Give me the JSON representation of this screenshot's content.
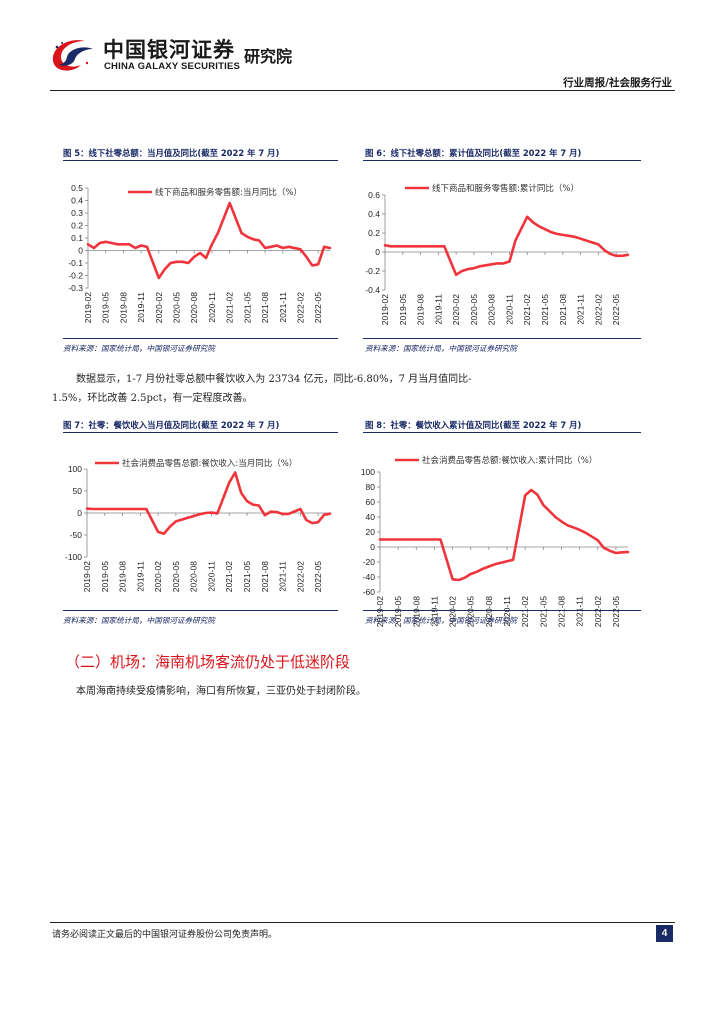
{
  "header": {
    "logo_cn": "中国银河证券",
    "logo_en": "CHINA GALAXY SECURITIES",
    "institute": "研究院",
    "category": "行业周报/社会服务行业"
  },
  "figures": [
    {
      "title": "图 5：线下社零总额：当月值及同比(截至 2022 年 7 月)",
      "source": "资料来源：国家统计局，中国银河证券研究院"
    },
    {
      "title": "图 6：线下社零总额：累计值及同比(截至 2022 年 7 月)",
      "source": "资料来源：国家统计局，中国银河证券研究院"
    },
    {
      "title": "图 7：社零：餐饮收入当月值及同比(截至 2022 年 7 月)",
      "source": "资料来源：国家统计局，中国银河证券研究院"
    },
    {
      "title": "图 8：社零：餐饮收入累计值及同比(截至 2022 年 7 月)",
      "source": "资料来源：国家统计局，中国银河证券研究院"
    }
  ],
  "body": {
    "para1_line1": "数据显示，1-7 月份社零总额中餐饮收入为 23734 亿元，同比-6.80%，7 月当月值同比-",
    "para1_line2": "1.5%，环比改善 2.5pct，有一定程度改善。",
    "section_title": "（二）机场：海南机场客流仍处于低迷阶段",
    "para2": "本周海南持续受疫情影响，海口有所恢复，三亚仍处于封闭阶段。"
  },
  "footer": {
    "disclaimer": "请务必阅读正文最后的中国银河证券股份公司免责声明。",
    "page": "4"
  },
  "colors": {
    "line": "#f0343c",
    "navy": "#1a2a66",
    "section_red": "#d9141b"
  },
  "chart_data": [
    {
      "type": "line",
      "legend": "线下商品和服务零售额:当月同比（%）",
      "yticks": [
        0.5,
        0.4,
        0.3,
        0.2,
        0.1,
        0,
        -0.1,
        -0.2,
        -0.3
      ],
      "ylim": [
        -0.3,
        0.5
      ],
      "xticks": [
        "2019-02",
        "2019-05",
        "2019-08",
        "2019-11",
        "2020-02",
        "2020-05",
        "2020-08",
        "2020-11",
        "2021-02",
        "2021-05",
        "2021-08",
        "2021-11",
        "2022-02",
        "2022-05"
      ],
      "x": [
        "2019-02",
        "2019-03",
        "2019-04",
        "2019-05",
        "2019-06",
        "2019-07",
        "2019-08",
        "2019-09",
        "2019-10",
        "2019-11",
        "2019-12",
        "2020-02",
        "2020-03",
        "2020-04",
        "2020-05",
        "2020-06",
        "2020-07",
        "2020-08",
        "2020-09",
        "2020-10",
        "2020-11",
        "2020-12",
        "2021-02",
        "2021-03",
        "2021-04",
        "2021-05",
        "2021-06",
        "2021-07",
        "2021-08",
        "2021-09",
        "2021-10",
        "2021-11",
        "2021-12",
        "2022-02",
        "2022-03",
        "2022-04",
        "2022-05",
        "2022-06",
        "2022-07"
      ],
      "values": [
        0.05,
        0.02,
        0.06,
        0.07,
        0.06,
        0.05,
        0.05,
        0.05,
        0.02,
        0.04,
        0.03,
        -0.22,
        -0.15,
        -0.1,
        -0.09,
        -0.09,
        -0.1,
        -0.05,
        -0.02,
        -0.06,
        0.05,
        0.14,
        0.38,
        0.26,
        0.14,
        0.11,
        0.09,
        0.08,
        0.02,
        0.03,
        0.04,
        0.02,
        0.03,
        0.01,
        -0.05,
        -0.12,
        -0.11,
        0.03,
        0.02
      ]
    },
    {
      "type": "line",
      "legend": "线下商品和服务零售额:累计同比（%）",
      "yticks": [
        0.6,
        0.4,
        0.2,
        0,
        -0.2,
        -0.4
      ],
      "ylim": [
        -0.4,
        0.6
      ],
      "xticks": [
        "2019-02",
        "2019-05",
        "2019-08",
        "2019-11",
        "2020-02",
        "2020-05",
        "2020-08",
        "2020-11",
        "2021-02",
        "2021-05",
        "2021-08",
        "2021-11",
        "2022-02",
        "2022-05"
      ],
      "x": [
        "2019-02",
        "2019-03",
        "2019-04",
        "2019-05",
        "2019-06",
        "2019-07",
        "2019-08",
        "2019-09",
        "2019-10",
        "2019-11",
        "2019-12",
        "2020-02",
        "2020-03",
        "2020-04",
        "2020-05",
        "2020-06",
        "2020-07",
        "2020-08",
        "2020-09",
        "2020-10",
        "2020-11",
        "2020-12",
        "2021-02",
        "2021-03",
        "2021-04",
        "2021-05",
        "2021-06",
        "2021-07",
        "2021-08",
        "2021-09",
        "2021-10",
        "2021-11",
        "2021-12",
        "2022-02",
        "2022-03",
        "2022-04",
        "2022-05",
        "2022-06",
        "2022-07"
      ],
      "values": [
        0.07,
        0.06,
        0.06,
        0.06,
        0.06,
        0.06,
        0.06,
        0.06,
        0.06,
        0.06,
        0.06,
        -0.24,
        -0.2,
        -0.18,
        -0.17,
        -0.15,
        -0.14,
        -0.13,
        -0.12,
        -0.12,
        -0.1,
        0.12,
        0.37,
        0.31,
        0.27,
        0.24,
        0.21,
        0.19,
        0.18,
        0.17,
        0.16,
        0.14,
        0.12,
        0.08,
        0.02,
        -0.02,
        -0.04,
        -0.04,
        -0.03
      ]
    },
    {
      "type": "line",
      "legend": "社会消费品零售总额:餐饮收入:当月同比（%）",
      "yticks": [
        100,
        50,
        0,
        -50,
        -100
      ],
      "ylim": [
        -100,
        100
      ],
      "xticks": [
        "2019-02",
        "2019-05",
        "2019-08",
        "2019-11",
        "2020-02",
        "2020-05",
        "2020-08",
        "2020-11",
        "2021-02",
        "2021-05",
        "2021-08",
        "2021-11",
        "2022-02",
        "2022-05"
      ],
      "x": [
        "2019-02",
        "2019-03",
        "2019-04",
        "2019-05",
        "2019-06",
        "2019-07",
        "2019-08",
        "2019-09",
        "2019-10",
        "2019-11",
        "2019-12",
        "2020-02",
        "2020-03",
        "2020-04",
        "2020-05",
        "2020-06",
        "2020-07",
        "2020-08",
        "2020-09",
        "2020-10",
        "2020-11",
        "2020-12",
        "2021-02",
        "2021-03",
        "2021-04",
        "2021-05",
        "2021-06",
        "2021-07",
        "2021-08",
        "2021-09",
        "2021-10",
        "2021-11",
        "2021-12",
        "2022-02",
        "2022-03",
        "2022-04",
        "2022-05",
        "2022-06",
        "2022-07"
      ],
      "values": [
        10,
        9,
        9,
        9,
        9,
        9,
        9,
        9,
        9,
        9,
        9,
        -43,
        -47,
        -31,
        -19,
        -15,
        -11,
        -7,
        -3,
        0,
        1,
        -1,
        69,
        92,
        46,
        27,
        19,
        17,
        -5,
        3,
        2,
        -2,
        -2,
        9,
        -16,
        -23,
        -21,
        -4,
        -1.5
      ]
    },
    {
      "type": "line",
      "legend": "社会消费品零售总额:餐饮收入:累计同比（%）",
      "yticks": [
        100,
        80,
        60,
        40,
        20,
        0,
        -20,
        -40,
        -60
      ],
      "ylim": [
        -60,
        100
      ],
      "xticks": [
        "2019-02",
        "2019-05",
        "2019-08",
        "2019-11",
        "2020-02",
        "2020-05",
        "2020-08",
        "2020-11",
        "2021-02",
        "2021-05",
        "2021-08",
        "2021-11",
        "2022-02",
        "2022-05"
      ],
      "x": [
        "2019-02",
        "2019-03",
        "2019-04",
        "2019-05",
        "2019-06",
        "2019-07",
        "2019-08",
        "2019-09",
        "2019-10",
        "2019-11",
        "2019-12",
        "2020-02",
        "2020-03",
        "2020-04",
        "2020-05",
        "2020-06",
        "2020-07",
        "2020-08",
        "2020-09",
        "2020-10",
        "2020-11",
        "2020-12",
        "2021-02",
        "2021-03",
        "2021-04",
        "2021-05",
        "2021-06",
        "2021-07",
        "2021-08",
        "2021-09",
        "2021-10",
        "2021-11",
        "2021-12",
        "2022-02",
        "2022-03",
        "2022-04",
        "2022-05",
        "2022-06",
        "2022-07"
      ],
      "values": [
        10,
        10,
        10,
        10,
        10,
        10,
        10,
        10,
        10,
        10,
        10,
        -43,
        -44,
        -41,
        -36,
        -33,
        -29,
        -26,
        -23,
        -21,
        -19,
        -17,
        69,
        76,
        70,
        56,
        48,
        40,
        34,
        29,
        26,
        23,
        19,
        9,
        -1,
        -5,
        -8,
        -7,
        -6.8
      ]
    }
  ]
}
